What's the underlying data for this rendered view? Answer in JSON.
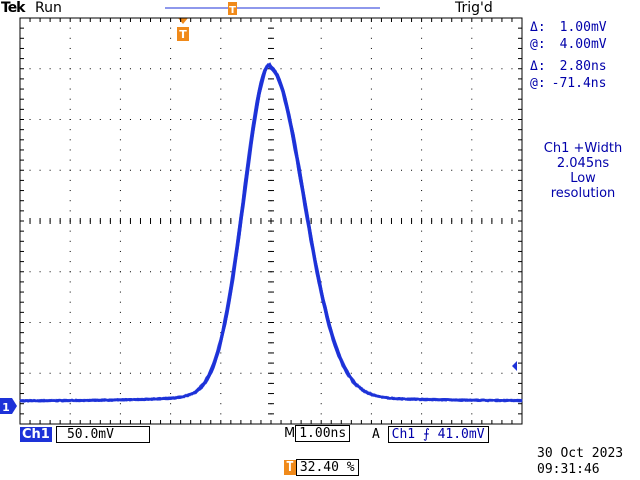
{
  "header": {
    "brand": "Tek",
    "run_state": "Run",
    "trigger_state": "Trig'd",
    "trigger_marker": "T"
  },
  "cursors": {
    "voltage": {
      "delta_symbol": "Δ:",
      "delta": "1.00mV",
      "at_symbol": "@:",
      "at": "4.00mV"
    },
    "time": {
      "delta_symbol": "Δ:",
      "delta": "2.80ns",
      "at_symbol": "@:",
      "at": "-71.4ns"
    }
  },
  "measurement": {
    "line1": "Ch1 +Width",
    "line2": "2.045ns",
    "line3": "Low",
    "line4": "resolution"
  },
  "footer": {
    "channel_label": "Ch1",
    "channel_scale": "50.0mV",
    "timebase_prefix": "M",
    "timebase": "1.00ns",
    "trigger_source_prefix": "A",
    "trigger_source": "Ch1",
    "trigger_slope": "⨍",
    "trigger_level": "41.0mV",
    "trigger_position_marker": "T",
    "trigger_position": "32.40 %",
    "date": "30 Oct  2023",
    "time": "09:31:46"
  },
  "channel_marker": "1",
  "colors": {
    "trace": "#1d32d8",
    "grid": "#000000",
    "trigger_marker": "#f08a1a",
    "readout": "#0000aa"
  }
}
